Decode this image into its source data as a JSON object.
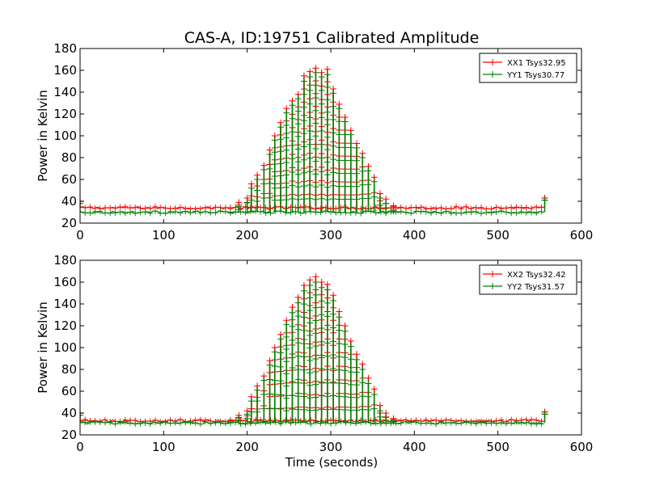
{
  "figure": {
    "title": "CAS-A, ID:19751 Calibrated Amplitude",
    "xlabel": "Time (seconds)"
  },
  "chart_data": [
    {
      "type": "line",
      "title": "CAS-A, ID:19751 Calibrated Amplitude",
      "xlabel": "",
      "ylabel": "Power in Kelvin",
      "xlim": [
        0,
        600
      ],
      "ylim": [
        20,
        180
      ],
      "xticks": [
        "0",
        "100",
        "200",
        "300",
        "400",
        "500",
        "600"
      ],
      "yticks": [
        "20",
        "40",
        "60",
        "80",
        "100",
        "120",
        "140",
        "160",
        "180"
      ],
      "grid": false,
      "legend": "top-right",
      "marker": "+",
      "series": [
        {
          "name": "XX1 Tsys32.95",
          "color": "#ff0000",
          "baseline": 34,
          "x": [
            0,
            180,
            190,
            200,
            205,
            212,
            220,
            227,
            233,
            240,
            247,
            254,
            261,
            268,
            275,
            282,
            289,
            296,
            303,
            310,
            317,
            324,
            331,
            338,
            345,
            352,
            359,
            366,
            375,
            430,
            556
          ],
          "y": [
            40,
            34,
            39,
            43,
            56,
            64,
            73,
            87,
            100,
            112,
            125,
            132,
            138,
            155,
            159,
            162,
            158,
            161,
            143,
            129,
            117,
            105,
            93,
            84,
            72,
            62,
            47,
            42,
            36,
            37,
            43
          ]
        },
        {
          "name": "YY1 Tsys30.77",
          "color": "#008000",
          "baseline": 30,
          "x": [
            0,
            180,
            190,
            200,
            205,
            212,
            220,
            227,
            233,
            240,
            247,
            254,
            261,
            268,
            275,
            282,
            289,
            296,
            303,
            310,
            317,
            324,
            331,
            338,
            345,
            352,
            359,
            366,
            375,
            430,
            556
          ],
          "y": [
            38,
            30,
            35,
            39,
            52,
            60,
            69,
            83,
            96,
            108,
            121,
            128,
            134,
            150,
            154,
            158,
            154,
            156,
            139,
            125,
            113,
            101,
            89,
            80,
            68,
            58,
            43,
            38,
            32,
            33,
            41
          ]
        }
      ]
    },
    {
      "type": "line",
      "title": "",
      "xlabel": "Time (seconds)",
      "ylabel": "Power in Kelvin",
      "xlim": [
        0,
        600
      ],
      "ylim": [
        20,
        180
      ],
      "xticks": [
        "0",
        "100",
        "200",
        "300",
        "400",
        "500",
        "600"
      ],
      "yticks": [
        "20",
        "40",
        "60",
        "80",
        "100",
        "120",
        "140",
        "160",
        "180"
      ],
      "grid": false,
      "legend": "top-right",
      "marker": "+",
      "series": [
        {
          "name": "XX2 Tsys32.42",
          "color": "#ff0000",
          "baseline": 33,
          "x": [
            0,
            180,
            190,
            200,
            205,
            212,
            220,
            227,
            233,
            240,
            247,
            254,
            261,
            268,
            275,
            282,
            289,
            296,
            303,
            310,
            317,
            324,
            331,
            338,
            345,
            352,
            359,
            366,
            375,
            430,
            556
          ],
          "y": [
            40,
            33,
            38,
            42,
            55,
            65,
            74,
            88,
            100,
            112,
            125,
            137,
            146,
            157,
            162,
            165,
            160,
            158,
            148,
            133,
            120,
            106,
            94,
            85,
            72,
            62,
            47,
            40,
            35,
            36,
            41
          ]
        },
        {
          "name": "YY2 Tsys31.57",
          "color": "#008000",
          "baseline": 31,
          "x": [
            0,
            180,
            190,
            200,
            205,
            212,
            220,
            227,
            233,
            240,
            247,
            254,
            261,
            268,
            275,
            282,
            289,
            296,
            303,
            310,
            317,
            324,
            331,
            338,
            345,
            352,
            359,
            366,
            375,
            430,
            556
          ],
          "y": [
            38,
            31,
            36,
            39,
            51,
            61,
            70,
            84,
            96,
            108,
            121,
            132,
            141,
            152,
            157,
            160,
            155,
            153,
            143,
            128,
            115,
            101,
            89,
            80,
            67,
            57,
            42,
            36,
            33,
            34,
            39
          ]
        }
      ]
    }
  ]
}
